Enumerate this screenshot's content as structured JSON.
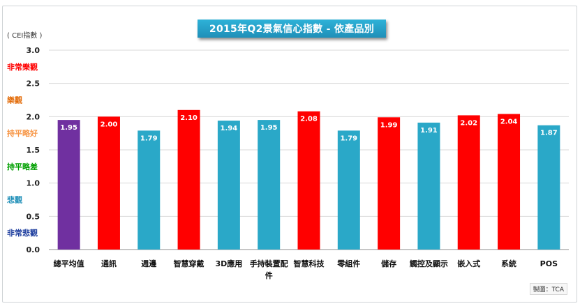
{
  "title": "2015年Q2景氣信心指數 - 依產品別",
  "unit_label": "( CEI指數 )",
  "credit": "製圖：TCA",
  "chart_data": {
    "type": "bar",
    "title": "2015年Q2景氣信心指數 - 依產品別",
    "ylim": [
      0,
      3.0
    ],
    "yticks": [
      "0.0",
      "0.5",
      "1.0",
      "1.5",
      "2.0",
      "2.5",
      "3.0"
    ],
    "grid": true,
    "categories": [
      "總平均值",
      "通訊",
      "週邊",
      "智慧穿戴",
      "3D應用",
      "手持裝置配件",
      "智慧科技",
      "零組件",
      "儲存",
      "觸控及顯示",
      "嵌入式",
      "系統",
      "POS"
    ],
    "category_lines": [
      [
        "總平均值"
      ],
      [
        "通訊"
      ],
      [
        "週邊"
      ],
      [
        "智慧穿戴"
      ],
      [
        "3D應用"
      ],
      [
        "手持裝置配",
        "件"
      ],
      [
        "智慧科技"
      ],
      [
        "零組件"
      ],
      [
        "儲存"
      ],
      [
        "觸控及顯示"
      ],
      [
        "嵌入式"
      ],
      [
        "系統"
      ],
      [
        "POS"
      ]
    ],
    "values": [
      1.95,
      2.0,
      1.79,
      2.1,
      1.94,
      1.95,
      2.08,
      1.79,
      1.99,
      1.91,
      2.02,
      2.04,
      1.87
    ],
    "value_labels": [
      "1.95",
      "2.00",
      "1.79",
      "2.10",
      "1.94",
      "1.95",
      "2.08",
      "1.79",
      "1.99",
      "1.91",
      "2.02",
      "2.04",
      "1.87"
    ],
    "bar_colors": [
      "#7030a0",
      "#ff0000",
      "#2aa8c8",
      "#ff0000",
      "#2aa8c8",
      "#2aa8c8",
      "#ff0000",
      "#2aa8c8",
      "#ff0000",
      "#2aa8c8",
      "#ff0000",
      "#ff0000",
      "#2aa8c8"
    ],
    "zone_labels": [
      {
        "text": "非常樂觀",
        "value": 2.75,
        "color": "#ff0000"
      },
      {
        "text": "樂觀",
        "value": 2.25,
        "color": "#e36c09"
      },
      {
        "text": "持平略好",
        "value": 1.75,
        "color": "#f79646"
      },
      {
        "text": "持平略差",
        "value": 1.25,
        "color": "#00a000"
      },
      {
        "text": "悲觀",
        "value": 0.75,
        "color": "#1f8fb8"
      },
      {
        "text": "非常悲觀",
        "value": 0.25,
        "color": "#1f3f9f"
      }
    ]
  }
}
